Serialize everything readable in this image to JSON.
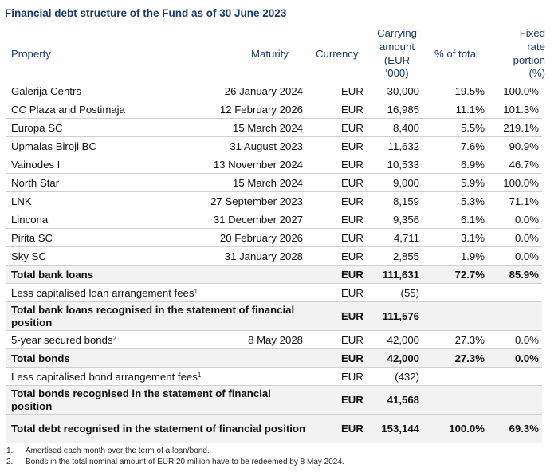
{
  "title": "Financial debt structure of the Fund as of 30 June 2023",
  "headers": {
    "property": "Property",
    "maturity": "Maturity",
    "currency": "Currency",
    "carrying": [
      "Carrying",
      "amount",
      "(EUR",
      "‘000)"
    ],
    "pct_total": "% of total",
    "fixed": [
      "Fixed",
      "rate",
      "portion",
      "(%)"
    ]
  },
  "rows": [
    {
      "property": "Galerija Centrs",
      "maturity": "26 January 2024",
      "currency": "EUR",
      "amount": "30,000",
      "pct": "19.5%",
      "fixed": "100.0%"
    },
    {
      "property": "CC Plaza and Postimaja",
      "maturity": "12 February 2026",
      "currency": "EUR",
      "amount": "16,985",
      "pct": "11.1%",
      "fixed": "101.3%"
    },
    {
      "property": "Europa SC",
      "maturity": "15 March 2024",
      "currency": "EUR",
      "amount": "8,400",
      "pct": "5.5%",
      "fixed": "219.1%"
    },
    {
      "property": "Upmalas Biroji BC",
      "maturity": "31 August 2023",
      "currency": "EUR",
      "amount": "11,632",
      "pct": "7.6%",
      "fixed": "90.9%"
    },
    {
      "property": "Vainodes I",
      "maturity": "13 November 2024",
      "currency": "EUR",
      "amount": "10,533",
      "pct": "6.9%",
      "fixed": "46.7%"
    },
    {
      "property": "North Star",
      "maturity": "15 March 2024",
      "currency": "EUR",
      "amount": "9,000",
      "pct": "5.9%",
      "fixed": "100.0%"
    },
    {
      "property": "LNK",
      "maturity": "27 September 2023",
      "currency": "EUR",
      "amount": "8,159",
      "pct": "5.3%",
      "fixed": "71.1%"
    },
    {
      "property": "Lincona",
      "maturity": "31 December 2027",
      "currency": "EUR",
      "amount": "9,356",
      "pct": "6.1%",
      "fixed": "0.0%"
    },
    {
      "property": "Pirita SC",
      "maturity": "20 February 2026",
      "currency": "EUR",
      "amount": "4,711",
      "pct": "3.1%",
      "fixed": "0.0%"
    },
    {
      "property": "Sky SC",
      "maturity": "31 January 2028",
      "currency": "EUR",
      "amount": "2,855",
      "pct": "1.9%",
      "fixed": "0.0%"
    },
    {
      "property": "Total bank loans",
      "maturity": "",
      "currency": "EUR",
      "amount": "111,631",
      "pct": "72.7%",
      "fixed": "85.9%"
    },
    {
      "property": "Less capitalised loan arrangement fees",
      "sup": "1",
      "maturity": "",
      "currency": "EUR",
      "amount": "(55)",
      "pct": "",
      "fixed": ""
    },
    {
      "property": "Total bank loans recognised in the statement of financial position",
      "maturity": "",
      "currency": "EUR",
      "amount": "111,576",
      "pct": "",
      "fixed": ""
    },
    {
      "property": "5-year secured bonds",
      "sup": "2",
      "maturity": "8 May 2028",
      "currency": "EUR",
      "amount": "42,000",
      "pct": "27.3%",
      "fixed": "0.0%"
    },
    {
      "property": "Total bonds",
      "maturity": "",
      "currency": "EUR",
      "amount": "42,000",
      "pct": "27.3%",
      "fixed": "0.0%"
    },
    {
      "property": "Less capitalised bond arrangement fees",
      "sup": "1",
      "maturity": "",
      "currency": "EUR",
      "amount": "(432)",
      "pct": "",
      "fixed": ""
    },
    {
      "property": "Total bonds recognised in the statement of financial position",
      "maturity": "",
      "currency": "EUR",
      "amount": "41,568",
      "pct": "",
      "fixed": ""
    },
    {
      "property": "Total debt recognised in the statement of financial position",
      "maturity": "",
      "currency": "EUR",
      "amount": "153,144",
      "pct": "100.0%",
      "fixed": "69.3%"
    }
  ],
  "notes": [
    {
      "num": "1.",
      "text": "Amortised each month over the term of a loan/bond."
    },
    {
      "num": "2.",
      "text": "Bonds in the total nominal amount of EUR 20 million have to be redeemed by 8 May 2024."
    }
  ]
}
